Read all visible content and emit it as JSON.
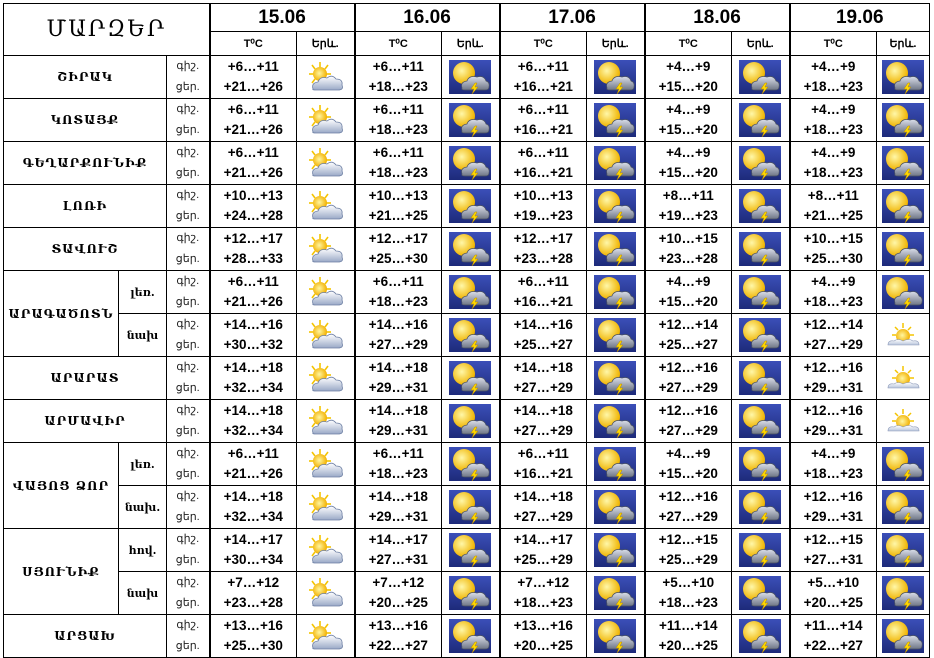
{
  "title": "ՄԱՐԶԵՐ",
  "dates": [
    "15.06",
    "16.06",
    "17.06",
    "18.06",
    "19.06"
  ],
  "subheaders": {
    "temp": "T⁰C",
    "weather": "Երև."
  },
  "rows": [
    {
      "region": "ՇԻՐԱԿ",
      "sub": "",
      "labels": [
        "գիշ.",
        "ցեր."
      ],
      "days": [
        {
          "temp": [
            "+6…+11",
            "+21…+26"
          ],
          "icon": "partly-cloudy-icon"
        },
        {
          "temp": [
            "+6…+11",
            "+18…+23"
          ],
          "icon": "thunderstorm-icon"
        },
        {
          "temp": [
            "+6…+11",
            "+16…+21"
          ],
          "icon": "thunderstorm-icon"
        },
        {
          "temp": [
            "+4…+9",
            "+15…+20"
          ],
          "icon": "thunderstorm-icon"
        },
        {
          "temp": [
            "+4…+9",
            "+18…+23"
          ],
          "icon": "thunderstorm-icon"
        }
      ]
    },
    {
      "region": "ԿՈՏԱՅՔ",
      "sub": "",
      "labels": [
        "գիշ.",
        "ցեր."
      ],
      "days": [
        {
          "temp": [
            "+6…+11",
            "+21…+26"
          ],
          "icon": "partly-cloudy-icon"
        },
        {
          "temp": [
            "+6…+11",
            "+18…+23"
          ],
          "icon": "thunderstorm-icon"
        },
        {
          "temp": [
            "+6…+11",
            "+16…+21"
          ],
          "icon": "thunderstorm-icon"
        },
        {
          "temp": [
            "+4…+9",
            "+15…+20"
          ],
          "icon": "thunderstorm-icon"
        },
        {
          "temp": [
            "+4…+9",
            "+18…+23"
          ],
          "icon": "thunderstorm-icon"
        }
      ]
    },
    {
      "region": "ԳԵՂԱՐՔՈՒՆԻՔ",
      "sub": "",
      "labels": [
        "գիշ.",
        "ցեր."
      ],
      "days": [
        {
          "temp": [
            "+6…+11",
            "+21…+26"
          ],
          "icon": "partly-cloudy-icon"
        },
        {
          "temp": [
            "+6…+11",
            "+18…+23"
          ],
          "icon": "thunderstorm-icon"
        },
        {
          "temp": [
            "+6…+11",
            "+16…+21"
          ],
          "icon": "thunderstorm-icon"
        },
        {
          "temp": [
            "+4…+9",
            "+15…+20"
          ],
          "icon": "thunderstorm-icon"
        },
        {
          "temp": [
            "+4…+9",
            "+18…+23"
          ],
          "icon": "thunderstorm-icon"
        }
      ]
    },
    {
      "region": "ԼՈՌԻ",
      "sub": "",
      "labels": [
        "գիշ.",
        "ցեր."
      ],
      "days": [
        {
          "temp": [
            "+10…+13",
            "+24…+28"
          ],
          "icon": "partly-cloudy-icon"
        },
        {
          "temp": [
            "+10…+13",
            "+21…+25"
          ],
          "icon": "thunderstorm-icon"
        },
        {
          "temp": [
            "+10…+13",
            "+19…+23"
          ],
          "icon": "thunderstorm-icon"
        },
        {
          "temp": [
            "+8…+11",
            "+19…+23"
          ],
          "icon": "thunderstorm-icon"
        },
        {
          "temp": [
            "+8…+11",
            "+21…+25"
          ],
          "icon": "thunderstorm-icon"
        }
      ]
    },
    {
      "region": "ՏԱՎՈՒՇ",
      "sub": "",
      "labels": [
        "գիշ.",
        "ցեր."
      ],
      "days": [
        {
          "temp": [
            "+12…+17",
            "+28…+33"
          ],
          "icon": "partly-cloudy-icon"
        },
        {
          "temp": [
            "+12…+17",
            "+25…+30"
          ],
          "icon": "thunderstorm-icon"
        },
        {
          "temp": [
            "+12…+17",
            "+23…+28"
          ],
          "icon": "thunderstorm-icon"
        },
        {
          "temp": [
            "+10…+15",
            "+23…+28"
          ],
          "icon": "thunderstorm-icon"
        },
        {
          "temp": [
            "+10…+15",
            "+25…+30"
          ],
          "icon": "thunderstorm-icon"
        }
      ]
    },
    {
      "region": "ԱՐԱԳԱԾՈՏՆ",
      "sub": "լեռ.",
      "labels": [
        "գիշ.",
        "ցեր."
      ],
      "days": [
        {
          "temp": [
            "+6…+11",
            "+21…+26"
          ],
          "icon": "partly-cloudy-icon"
        },
        {
          "temp": [
            "+6…+11",
            "+18…+23"
          ],
          "icon": "thunderstorm-icon"
        },
        {
          "temp": [
            "+6…+11",
            "+16…+21"
          ],
          "icon": "thunderstorm-icon"
        },
        {
          "temp": [
            "+4…+9",
            "+15…+20"
          ],
          "icon": "thunderstorm-icon"
        },
        {
          "temp": [
            "+4…+9",
            "+18…+23"
          ],
          "icon": "thunderstorm-icon"
        }
      ]
    },
    {
      "region": "",
      "sub": "նախ",
      "labels": [
        "գիշ.",
        "ցեր."
      ],
      "days": [
        {
          "temp": [
            "+14…+16",
            "+30…+32"
          ],
          "icon": "partly-cloudy-icon"
        },
        {
          "temp": [
            "+14…+16",
            "+27…+29"
          ],
          "icon": "thunderstorm-icon"
        },
        {
          "temp": [
            "+14…+16",
            "+25…+27"
          ],
          "icon": "thunderstorm-icon"
        },
        {
          "temp": [
            "+12…+14",
            "+25…+27"
          ],
          "icon": "thunderstorm-icon"
        },
        {
          "temp": [
            "+12…+14",
            "+27…+29"
          ],
          "icon": "sunny-icon"
        }
      ]
    },
    {
      "region": "ԱՐԱՐԱՏ",
      "sub": "",
      "labels": [
        "գիշ.",
        "ցեր."
      ],
      "days": [
        {
          "temp": [
            "+14…+18",
            "+32…+34"
          ],
          "icon": "partly-cloudy-icon"
        },
        {
          "temp": [
            "+14…+18",
            "+29…+31"
          ],
          "icon": "thunderstorm-icon"
        },
        {
          "temp": [
            "+14…+18",
            "+27…+29"
          ],
          "icon": "thunderstorm-icon"
        },
        {
          "temp": [
            "+12…+16",
            "+27…+29"
          ],
          "icon": "thunderstorm-icon"
        },
        {
          "temp": [
            "+12…+16",
            "+29…+31"
          ],
          "icon": "sunny-icon"
        }
      ]
    },
    {
      "region": "ԱՐՄԱՎԻՐ",
      "sub": "",
      "labels": [
        "գիշ.",
        "ցեր."
      ],
      "days": [
        {
          "temp": [
            "+14…+18",
            "+32…+34"
          ],
          "icon": "partly-cloudy-icon"
        },
        {
          "temp": [
            "+14…+18",
            "+29…+31"
          ],
          "icon": "thunderstorm-icon"
        },
        {
          "temp": [
            "+14…+18",
            "+27…+29"
          ],
          "icon": "thunderstorm-icon"
        },
        {
          "temp": [
            "+12…+16",
            "+27…+29"
          ],
          "icon": "thunderstorm-icon"
        },
        {
          "temp": [
            "+12…+16",
            "+29…+31"
          ],
          "icon": "sunny-icon"
        }
      ]
    },
    {
      "region": "ՎԱՅՈՑ ՁՈՐ",
      "sub": "լեռ.",
      "labels": [
        "գիշ.",
        "ցեր."
      ],
      "days": [
        {
          "temp": [
            "+6…+11",
            "+21…+26"
          ],
          "icon": "partly-cloudy-icon"
        },
        {
          "temp": [
            "+6…+11",
            "+18…+23"
          ],
          "icon": "thunderstorm-icon"
        },
        {
          "temp": [
            "+6…+11",
            "+16…+21"
          ],
          "icon": "thunderstorm-icon"
        },
        {
          "temp": [
            "+4…+9",
            "+15…+20"
          ],
          "icon": "thunderstorm-icon"
        },
        {
          "temp": [
            "+4…+9",
            "+18…+23"
          ],
          "icon": "thunderstorm-icon"
        }
      ]
    },
    {
      "region": "",
      "sub": "նախ.",
      "labels": [
        "գիշ.",
        "ցեր."
      ],
      "days": [
        {
          "temp": [
            "+14…+18",
            "+32…+34"
          ],
          "icon": "partly-cloudy-icon"
        },
        {
          "temp": [
            "+14…+18",
            "+29…+31"
          ],
          "icon": "thunderstorm-icon"
        },
        {
          "temp": [
            "+14…+18",
            "+27…+29"
          ],
          "icon": "thunderstorm-icon"
        },
        {
          "temp": [
            "+12…+16",
            "+27…+29"
          ],
          "icon": "thunderstorm-icon"
        },
        {
          "temp": [
            "+12…+16",
            "+29…+31"
          ],
          "icon": "thunderstorm-icon"
        }
      ]
    },
    {
      "region": "ՍՅՈՒՆԻՔ",
      "sub": "հով.",
      "labels": [
        "գիշ.",
        "ցեր."
      ],
      "days": [
        {
          "temp": [
            "+14…+17",
            "+30…+34"
          ],
          "icon": "partly-cloudy-icon"
        },
        {
          "temp": [
            "+14…+17",
            "+27…+31"
          ],
          "icon": "thunderstorm-icon"
        },
        {
          "temp": [
            "+14…+17",
            "+25…+29"
          ],
          "icon": "thunderstorm-icon"
        },
        {
          "temp": [
            "+12…+15",
            "+25…+29"
          ],
          "icon": "thunderstorm-icon"
        },
        {
          "temp": [
            "+12…+15",
            "+27…+31"
          ],
          "icon": "thunderstorm-icon"
        }
      ]
    },
    {
      "region": "",
      "sub": "նախ",
      "labels": [
        "գիշ.",
        "ցեր."
      ],
      "days": [
        {
          "temp": [
            "+7…+12",
            "+23…+28"
          ],
          "icon": "partly-cloudy-icon"
        },
        {
          "temp": [
            "+7…+12",
            "+20…+25"
          ],
          "icon": "thunderstorm-icon"
        },
        {
          "temp": [
            "+7…+12",
            "+18…+23"
          ],
          "icon": "thunderstorm-icon"
        },
        {
          "temp": [
            "+5…+10",
            "+18…+23"
          ],
          "icon": "thunderstorm-icon"
        },
        {
          "temp": [
            "+5…+10",
            "+20…+25"
          ],
          "icon": "thunderstorm-icon"
        }
      ]
    },
    {
      "region": "ԱՐՑԱԽ",
      "sub": "",
      "labels": [
        "գիշ.",
        "ցեր."
      ],
      "days": [
        {
          "temp": [
            "+13…+16",
            "+25…+30"
          ],
          "icon": "partly-cloudy-icon"
        },
        {
          "temp": [
            "+13…+16",
            "+22…+27"
          ],
          "icon": "thunderstorm-icon"
        },
        {
          "temp": [
            "+13…+16",
            "+20…+25"
          ],
          "icon": "thunderstorm-icon"
        },
        {
          "temp": [
            "+11…+14",
            "+20…+25"
          ],
          "icon": "thunderstorm-icon"
        },
        {
          "temp": [
            "+11…+14",
            "+22…+27"
          ],
          "icon": "thunderstorm-icon"
        }
      ]
    }
  ]
}
